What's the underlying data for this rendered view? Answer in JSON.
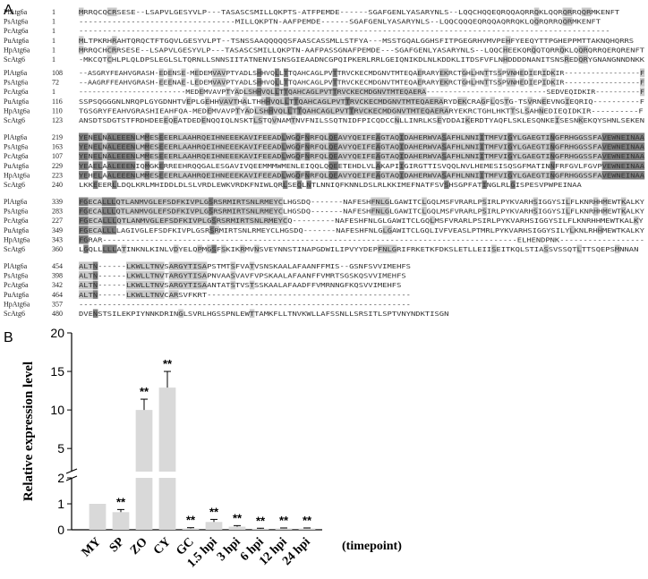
{
  "panel_a": {
    "label": "A",
    "blocks": [
      {
        "rows": [
          {
            "name": "PlAtg6a",
            "start": "1",
            "seq": "MRRQCQCRSESE--LSAPVLGESYVLP---TASASCSMILLQKPTS-ATFPEMDE------SGAFGENLYASARYNLS--LQQCHQQEQRQQAQRRQKLQQRQRRQQRMKENFT"
          },
          {
            "name": "PsAtg6a",
            "start": "1",
            "seq": "---------------------------------MILLQKPTN-AAFPEMDE------SGAFGENLYASARYNLS--LQQCQQQEQRQQAQRRQKLQQRQRRQQRMKENFT"
          },
          {
            "name": "PcAtg6a",
            "start": "1",
            "seq": "----------------------------------------------------------------------------------------------------------------"
          },
          {
            "name": "PuAtg6a",
            "start": "1",
            "seq": "MLTPKRHRAHTQRQCTFTGQVLGESYVLPT--TSNSSAAQQQQQSFAASCASSMLLSTFYA---MSSTGQALGGHSFITPGEGRHVMVPEHFYEEQYTTPGHEPPMTTAKNQHQRRS"
          },
          {
            "name": "HpAtg6a",
            "start": "1",
            "seq": "MRRQCHCRRSESE--LSAPVLGESYVLP---TASASCSMILLQKPTN-AAFPASSGNAFPEMDE---SGAFGENLYASARYNLS--LQQCHEEKQRQQTQRRQKLQQRQRRQERQRENFT"
          },
          {
            "name": "ScAtg6",
            "start": "1",
            "seq": "-MKCQTCHLPLQLDPSLEGLSLTQRNLLSNNSIITATNENVISNSGIEAADNCGPQIPKERLRRLGEIQNIKDLNLKDDKLITDSFVFLNHDDDDNANITSNSREDQRYGNANGNNDNKK"
          }
        ]
      },
      {
        "rows": [
          {
            "name": "PlAtg6a",
            "start": "108",
            "seq": "--ASGRYFEAHVGRASH-EDENSE-MEDEMVAVPTYADLSHHVQLLTTQAHCAGLPVTTRVCKECMDGNVTMTEQAERARYEKRCTGHLHNTTSSPVNHEDIERIDKIR-----------------F"
          },
          {
            "name": "PsAtg6a",
            "start": "72",
            "seq": "--AAGRFFEAHVGRASH-EEENAE-LEDEMVAVPTYADLSHHVQLLTTQAHCAGLPVTTRVCKECMDGNVTMTEQAERARYEKRCTGHLHNTTSSPVNHEDIEPIDKIR-----------------F"
          },
          {
            "name": "PcAtg6a",
            "start": "1",
            "seq": "------------------------MEDEMVAVPTYADLSHHVQLLTTQAHCAGLPVTTRVCKECMDGNVTMTEQAERA---------------------------SEDVEQIDKIR----------F"
          },
          {
            "name": "PuAtg6a",
            "start": "116",
            "seq": "SSPSQGGGNLNRQPLGYGDNHTVEPLGEHHVAVTHALTHHHVQLLTTQAHCAGLPVTTRVCKECMDGNVTMTEQAERARYDEKCRAGFLQSTG-TSVRNEEVNGIEQRIQ----------F"
          },
          {
            "name": "HpAtg6a",
            "start": "110",
            "seq": "TGSGRYFEAHVGRASHIEAHFQA-MEDEMVAVPTYADLSHHVQLLTTQAHCAGLPVTTRVCKECMDGNVTMTEQAERARYEKRCTGHLHKTTSLSAHNEDIEQIDKIR----------F"
          },
          {
            "name": "ScAtg6",
            "start": "123",
            "seq": "ANSDTSDGTSTFRDHDEEEQEATDEDENQQIQLNSKTLSTQVNAMTNVFNILSSQTNIDFPICQDCCNLLINRLKSEYDDAIKERDTYAQFLSKLESQNKEISESNKEKQYSHNLSEKEN"
          }
        ]
      },
      {
        "rows": [
          {
            "name": "PlAtg6a",
            "start": "219",
            "seq": "YENELNALEEENLMMESEEERLAAHRQEIHNEEEKAVIFEEADLWGQFNRFQLQEAVYQEIFEAGTAQIDAHERWVASAFHLNNIITMFVIGYLGAEGTINGFRHGGSSFAVEWNEINAA"
          },
          {
            "name": "PsAtg6a",
            "start": "163",
            "seq": "YENELNALEEENLMMESEEERLAAHRQEIHNEEEKAVIFEEADLWGQFNRFQLQEAVYQEIFEAGTAQIDAHERWVASAFHLNNIITMFVIGYLGAEGTINGFRHGGSSFAVEWNEINAA"
          },
          {
            "name": "PcAtg6a",
            "start": "107",
            "seq": "YENELNALEEENLMMESEEERLAAHRQEIHNEEEKAVIFEEADLWGQFNRFQLQEAVYQEIFEAGTAQIDAHERWVASAFHLNNIITMFVIGYLGAEGTINGFRHGGSSFAVEWNEINAA"
          },
          {
            "name": "PuAtg6a",
            "start": "229",
            "seq": "YEAELAALEEENIQMGKERREEHRQQGALESGAVIVQEEMMMWMENLEIQQLQQEETEHDLVLAKAPIIGIRGTTISVQQLNVLHEMESISQSGFMATINNFRFGVLFGVPVEWNEINAA"
          },
          {
            "name": "HpAtg6a",
            "start": "223",
            "seq": "YEHELAALEEENLMMESEEERLAAHRQEIHNEEEKAVIFEEADLWGQFNRFQLQEAVYQEIFEAGTAQIDAHERWVASAFHLNNIITMFVIGYLGAEGTINGFRHGGSSFAVEWNEINAA"
          },
          {
            "name": "ScAtg6",
            "start": "240",
            "seq": "LKKEEERLLDQLKRLMHIDDLDLSLVRDLEWKVRDKFNIWLQRLSEQLNTLNNIQFKNNLDSLRLKKIMEFNATFSVSHSGPFATINGLRLGISPESVPWPEINAA"
          }
        ]
      },
      {
        "rows": [
          {
            "name": "PlAtg6a",
            "start": "339",
            "seq": "FGECALLLQTLANMVGLEFSDFKIVPLGSRSRMIRTSNLRMEYCLHGSDQ-------NAFESHFNLGLGAWITCLGQLMSFVRARLPSIRLPYKVARHSIGGYSILFLKNRHHMEWTKALKY"
          },
          {
            "name": "PsAtg6a",
            "start": "283",
            "seq": "FGECALLLQTLANMVGLEFSDFKIVPLGSRSRMIRTSNLRMEYCLHGSDQ-------NAFESHFNLGLGAWITCLGQLMSFVRARLPSIRLPYKVARHSIGGYSILFLKNRHHMEWTKALKY"
          },
          {
            "name": "PcAtg6a",
            "start": "227",
            "seq": "FGECALLLQTLANMVGLEFSDFKIVPLGSRSRMIRTSNLRMEYCQ---------NAFESHFNLGLGAWITCLGQLMSFVRARLPSIRLPYKVARHSIGGYSILFLKNRHHMEWTKALKY"
          },
          {
            "name": "PuAtg6a",
            "start": "349",
            "seq": "FGECALLLLAGIVGLEFSDFKIVPLGSRSRMIRTSNLRMEYCLHGSDQ-------NAFESHFNLGLGAWITCLGQLIVFVEASLPTMRLPYKVARHSIGGYSILYLKNLRHHMEWTKALKY"
          },
          {
            "name": "HpAtg6a",
            "start": "343",
            "seq": "FGRAR----------------------------------------------------------------------------------------ELHENDPNK------------------"
          },
          {
            "name": "ScAtg6",
            "start": "360",
            "seq": "LGQLLLLLATINKNLKINLVDYELQPMGSFSKIKRMVNSVEYNNSTINAPGDWILIPVYYDEPFNLGRIFRKETKFDKSLETLLEIISEITKQLSTIASSVSSQTLTTSQEPSMNNAN"
          }
        ]
      },
      {
        "rows": [
          {
            "name": "PlAtg6a",
            "start": "454",
            "seq": "ALTN------LKWLLTNVSARGYTISAPSTMTSFVATVSNSKAALAFAANFFMIS--GSNFSVVIMEHFS"
          },
          {
            "name": "PsAtg6a",
            "start": "398",
            "seq": "ALTN------LKWLLTNVTARGYTISAPNVAASVAVFVPSKAALAFAANFFVMRTSGSKQSVVIMEHFS"
          },
          {
            "name": "PcAtg6a",
            "start": "342",
            "seq": "ALTN------LKWLLTNVSARGYTISAANTATSTVSTSSKAALAFAADFFVMRNNGFKQSVVIMEHFS"
          },
          {
            "name": "PuAtg6a",
            "start": "464",
            "seq": "ALTN------LKWLLTNVCARSVFKRT-------------------------------------------"
          },
          {
            "name": "HpAtg6a",
            "start": "357",
            "seq": "----------------------------------------------------------------------"
          },
          {
            "name": "ScAtg6",
            "start": "480",
            "seq": "DVENSTSILEKPIYNNKDRINGLSVRLHGSSPNLEWTTAMKFLLTNVKWLLAFSSNLLSRSITLSPTVNYNDKTISGN"
          }
        ]
      }
    ]
  },
  "panel_b": {
    "label": "B",
    "chart_data": {
      "type": "bar",
      "categories": [
        "MY",
        "SP",
        "ZO",
        "CY",
        "GC",
        "1.5 hpi",
        "3 hpi",
        "6 hpi",
        "12 hpi",
        "24 hpi"
      ],
      "values": [
        1.0,
        0.68,
        10.0,
        12.9,
        0.05,
        0.3,
        0.12,
        0.04,
        0.05,
        0.05
      ],
      "errors": [
        0.0,
        0.1,
        1.4,
        2.1,
        0.03,
        0.1,
        0.04,
        0.02,
        0.02,
        0.02
      ],
      "significance": [
        "",
        "**",
        "**",
        "**",
        "**",
        "**",
        "**",
        "**",
        "**",
        "**"
      ],
      "ylabel": "Relative expression level",
      "xlabel": "(timepoint)",
      "axis_break": {
        "lower": [
          0,
          2
        ],
        "upper": [
          2,
          20
        ]
      },
      "lower_ticks": [
        0,
        1,
        2
      ],
      "upper_ticks": [
        5,
        10,
        15,
        20
      ],
      "bar_color": "#d9d9d9",
      "grid": false
    }
  }
}
